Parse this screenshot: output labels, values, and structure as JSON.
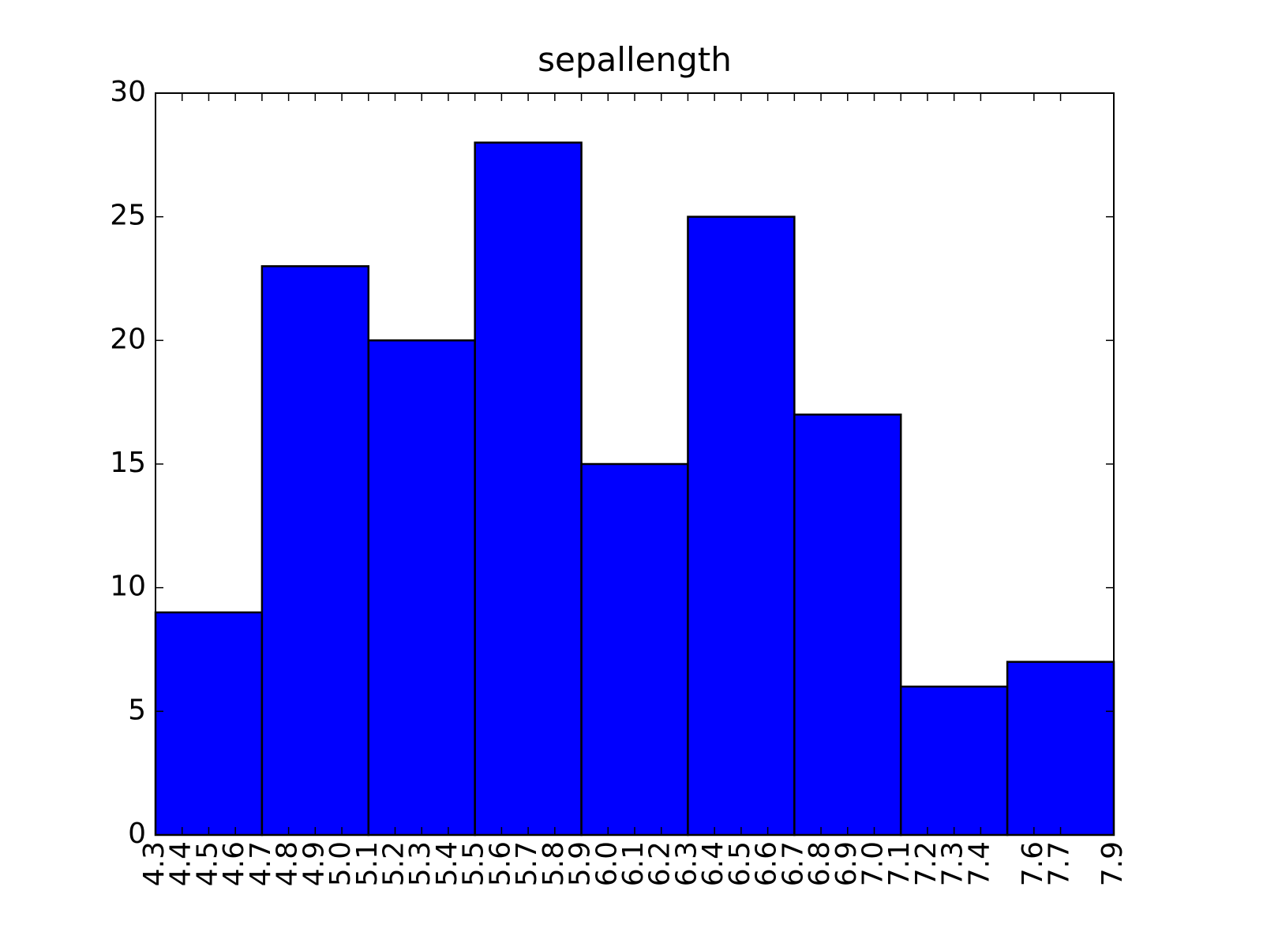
{
  "chart_data": {
    "type": "histogram",
    "title": "sepallength",
    "bins": [
      4.3,
      4.7,
      5.1,
      5.5,
      5.9,
      6.3,
      6.7,
      7.1,
      7.5,
      7.9
    ],
    "values": [
      9,
      23,
      20,
      28,
      15,
      25,
      17,
      6,
      7
    ],
    "color": "#0000ff",
    "edgecolor": "#000000",
    "xlim": [
      4.3,
      7.9
    ],
    "xticks": [
      4.3,
      4.4,
      4.5,
      4.6,
      4.7,
      4.8,
      4.9,
      {
        "value": 5,
        "label": "5.0"
      },
      5.1,
      5.2,
      5.3,
      5.4,
      5.5,
      5.6,
      5.7,
      5.8,
      5.9,
      {
        "value": 6,
        "label": "6.0"
      },
      6.1,
      6.2,
      6.3,
      6.4,
      6.5,
      6.6,
      6.7,
      6.8,
      6.9,
      {
        "value": 7,
        "label": "7.0"
      },
      7.1,
      7.2,
      7.3,
      7.4,
      7.6,
      7.7,
      7.9
    ],
    "ylim": [
      0,
      30
    ],
    "yticks": [
      0,
      5,
      10,
      15,
      20,
      25,
      30
    ],
    "grid": false
  }
}
